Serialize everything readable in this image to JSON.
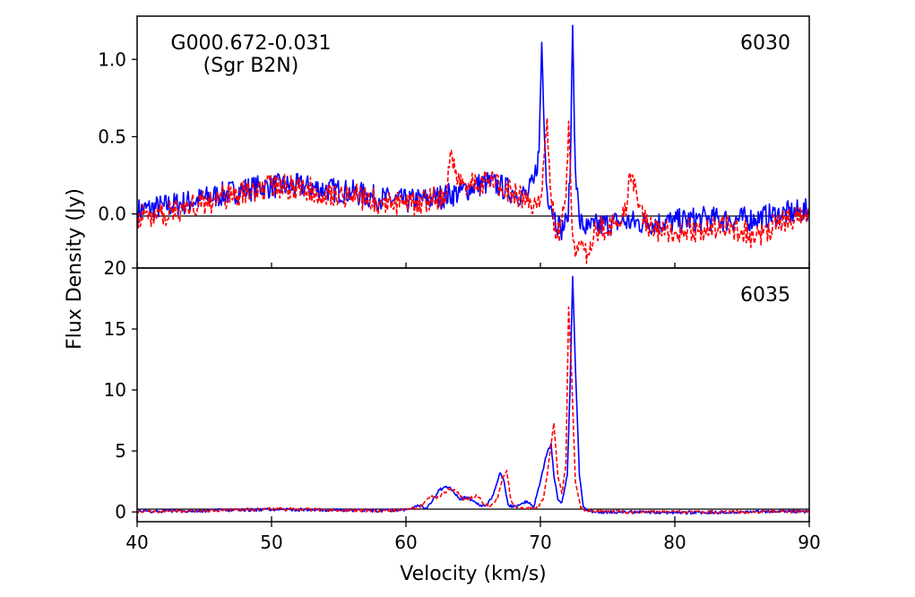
{
  "chart_data": {
    "type": "line",
    "xlabel": "Velocity (km/s)",
    "ylabel": "Flux Density (Jy)",
    "xlim": [
      40,
      90
    ],
    "x_ticks": [
      "40",
      "50",
      "60",
      "70",
      "80",
      "90"
    ],
    "colors": {
      "series_a": "#0000ff",
      "series_b": "#ff0000"
    },
    "panels": [
      {
        "label": "6030",
        "source_name": "G000.672-0.031",
        "source_alias": "(Sgr B2N)",
        "ylim": [
          -0.35,
          1.28
        ],
        "y_ticks": [
          "0.0",
          "0.5",
          "1.0"
        ],
        "y_tick_values": [
          0.0,
          0.5,
          1.0
        ],
        "top_tick_label": "",
        "series": [
          {
            "style": "solid",
            "x": [
              40,
              42,
              44,
              46,
              48,
              50,
              52,
              54,
              56,
              58,
              60,
              62,
              64,
              65,
              66,
              67,
              68,
              69,
              69.5,
              69.9,
              70.1,
              70.3,
              70.5,
              70.8,
              71.0,
              71.5,
              72.0,
              72.2,
              72.4,
              72.6,
              72.9,
              73.5,
              74,
              76,
              78,
              80,
              82,
              84,
              86,
              88,
              90
            ],
            "y": [
              0.02,
              0.05,
              0.08,
              0.12,
              0.16,
              0.18,
              0.18,
              0.16,
              0.14,
              0.1,
              0.08,
              0.1,
              0.14,
              0.18,
              0.2,
              0.18,
              0.14,
              0.12,
              0.2,
              0.4,
              1.11,
              0.5,
              0.15,
              0.05,
              0.0,
              -0.1,
              -0.05,
              0.2,
              1.22,
              0.3,
              -0.05,
              -0.1,
              -0.08,
              -0.05,
              -0.06,
              -0.05,
              -0.03,
              -0.04,
              -0.03,
              0.0,
              0.02
            ]
          },
          {
            "style": "dashed",
            "x": [
              40,
              42,
              44,
              46,
              48,
              50,
              52,
              54,
              56,
              58,
              60,
              62,
              63,
              63.3,
              64,
              65,
              66,
              67,
              68,
              69,
              69.5,
              70,
              70.2,
              70.5,
              70.8,
              71.2,
              71.6,
              71.9,
              72.1,
              72.3,
              72.6,
              73,
              73.5,
              74,
              76,
              76.8,
              78,
              80,
              82,
              84,
              86,
              88,
              90
            ],
            "y": [
              -0.02,
              0.0,
              0.05,
              0.1,
              0.14,
              0.18,
              0.17,
              0.14,
              0.12,
              0.08,
              0.06,
              0.09,
              0.12,
              0.4,
              0.18,
              0.2,
              0.22,
              0.18,
              0.14,
              0.08,
              0.05,
              0.1,
              0.3,
              0.62,
              0.1,
              -0.15,
              -0.05,
              0.1,
              0.6,
              0.05,
              -0.28,
              -0.2,
              -0.25,
              -0.1,
              -0.08,
              0.25,
              -0.1,
              -0.12,
              -0.1,
              -0.08,
              -0.15,
              -0.05,
              -0.02
            ]
          }
        ]
      },
      {
        "label": "6035",
        "ylim": [
          -0.8,
          20.0
        ],
        "y_ticks": [
          "0",
          "5",
          "10",
          "15"
        ],
        "y_tick_values": [
          0,
          5,
          10,
          15
        ],
        "top_tick_label": "20",
        "series": [
          {
            "style": "solid",
            "x": [
              40,
              45,
              50,
              55,
              58,
              60,
              61,
              61.5,
              62,
              62.5,
              63,
              63.5,
              64,
              64.5,
              65,
              65.5,
              66,
              66.5,
              67,
              67.3,
              67.6,
              68,
              68.5,
              69,
              69.5,
              70,
              70.3,
              70.6,
              70.8,
              71,
              71.3,
              71.6,
              72,
              72.2,
              72.4,
              72.6,
              72.9,
              73.2,
              73.6,
              74,
              76,
              80,
              85,
              90
            ],
            "y": [
              0.05,
              0.1,
              0.2,
              0.15,
              0.1,
              0.2,
              0.5,
              0.3,
              1.0,
              1.8,
              2.1,
              1.8,
              1.0,
              1.2,
              0.9,
              0.5,
              0.6,
              1.4,
              3.2,
              2.5,
              0.6,
              0.4,
              0.6,
              0.9,
              0.4,
              2.5,
              4.0,
              5.2,
              5.6,
              3.0,
              1.0,
              0.8,
              3.0,
              10.0,
              19.3,
              12.0,
              3.0,
              0.4,
              0.1,
              0.0,
              0.0,
              -0.05,
              0.0,
              0.05
            ]
          },
          {
            "style": "dashed",
            "x": [
              40,
              45,
              50,
              55,
              58,
              60,
              61,
              61.8,
              62.3,
              62.8,
              63.3,
              63.8,
              64.3,
              64.8,
              65.3,
              65.8,
              66.3,
              66.8,
              67.2,
              67.5,
              67.8,
              68.2,
              68.7,
              69.2,
              69.7,
              70.2,
              70.5,
              70.8,
              71.0,
              71.3,
              71.6,
              71.9,
              72.1,
              72.3,
              72.6,
              73.0,
              73.5,
              74,
              76,
              80,
              85,
              90
            ],
            "y": [
              0.05,
              0.1,
              0.25,
              0.15,
              0.1,
              0.15,
              0.4,
              1.3,
              1.1,
              1.5,
              1.9,
              1.6,
              1.0,
              1.1,
              1.4,
              0.6,
              0.5,
              1.0,
              2.8,
              3.4,
              1.0,
              0.4,
              0.3,
              0.4,
              0.3,
              1.0,
              3.0,
              5.5,
              7.3,
              3.0,
              1.5,
              4.0,
              16.8,
              12.0,
              2.5,
              0.3,
              0.1,
              0.05,
              0.0,
              0.0,
              0.0,
              0.05
            ]
          }
        ]
      }
    ]
  }
}
